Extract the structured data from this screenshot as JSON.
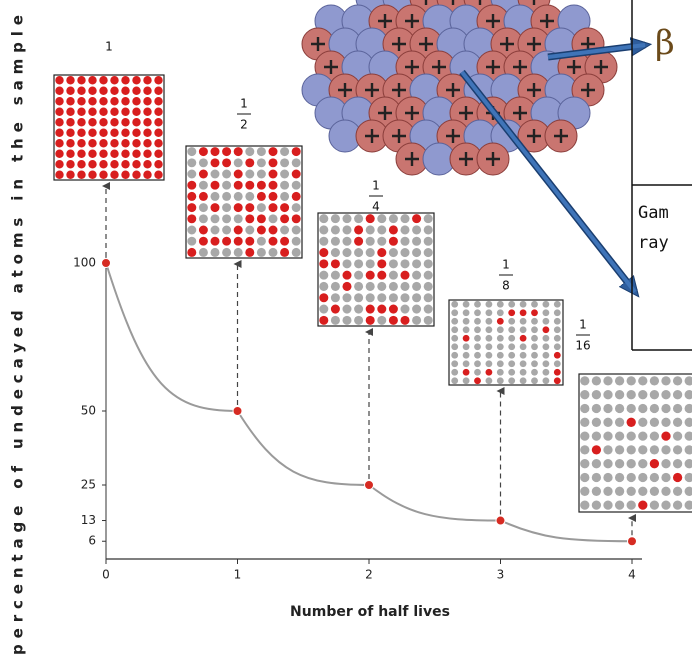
{
  "chart_data": {
    "type": "line",
    "xlabel": "Number of half lives",
    "ylabel": "percentage of undecayed atoms in the sample",
    "x": [
      0,
      1,
      2,
      3,
      4
    ],
    "values": [
      100,
      50,
      25,
      13,
      6
    ],
    "color": "#d62b22",
    "line_color": "#9a9a9a",
    "xlim": [
      0,
      4
    ],
    "ylim": [
      0,
      100
    ],
    "xticks": [
      0,
      1,
      2,
      3,
      4
    ],
    "yticks": [
      6,
      13,
      25,
      50,
      100
    ],
    "fractions": [
      {
        "numerator": "1"
      },
      {
        "numerator": "1",
        "denominator": "2"
      },
      {
        "numerator": "1",
        "denominator": "4"
      },
      {
        "numerator": "1",
        "denominator": "8"
      },
      {
        "numerator": "1",
        "denominator": "16"
      }
    ]
  },
  "table": {
    "beta": "β",
    "gamma_line1": "Gam",
    "gamma_line2": "ray"
  }
}
